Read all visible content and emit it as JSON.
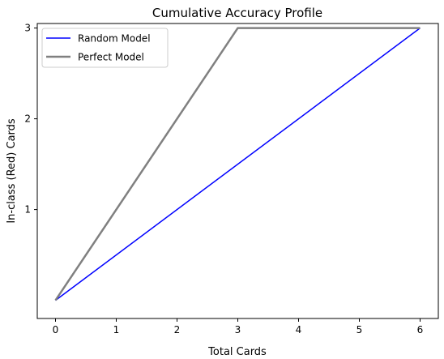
{
  "chart_data": {
    "type": "line",
    "title": "Cumulative Accuracy Profile",
    "xlabel": "Total Cards",
    "ylabel": "In-class (Red) Cards",
    "xlim": [
      -0.3,
      6.3
    ],
    "ylim": [
      -0.2,
      3.05
    ],
    "xticks": [
      0,
      1,
      2,
      3,
      4,
      5,
      6
    ],
    "yticks": [
      1,
      2,
      3
    ],
    "grid": false,
    "legend_position": "top-left",
    "series": [
      {
        "name": "Random Model",
        "color": "#0000ff",
        "width": 1.5,
        "x": [
          0,
          6
        ],
        "y": [
          0,
          3
        ]
      },
      {
        "name": "Perfect Model",
        "color": "#808080",
        "width": 2.5,
        "x": [
          0,
          3,
          6
        ],
        "y": [
          0,
          3,
          3
        ]
      }
    ]
  }
}
